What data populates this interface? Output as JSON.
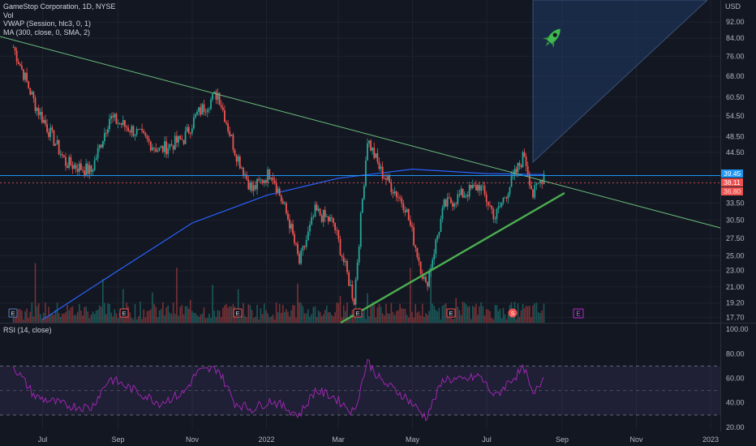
{
  "legend": {
    "line1": "GameStop Corporation, 1D, NYSE",
    "line2": "Vol",
    "line3": "VWAP (Session, hlc3, 0, 1)",
    "line4": "MA (300, close, 0, SMA, 2)"
  },
  "rsi_legend": "RSI (14, close)",
  "currency": "USD",
  "price_tags": {
    "current": "39.45",
    "level_a": "38.11",
    "level_b": "36.80"
  },
  "colors": {
    "background": "#131722",
    "up": "#26a69a",
    "down": "#ef5350",
    "ma": "#2962ff",
    "trend_line": "#6bbf7a",
    "support_line": "#4caf50",
    "rsi_line": "#9c27b0",
    "rsi_band": "#7e57c2",
    "current_price": "#2196f3",
    "projection_fill": "#1e3a66"
  },
  "earnings_markers": [
    "E",
    "E",
    "E",
    "E",
    "E",
    "E"
  ],
  "split_marker": "S",
  "future_earnings_marker": "E",
  "chart_data": [
    {
      "type": "candlestick",
      "title": "GameStop Corporation, 1D, NYSE",
      "x_tick_labels": [
        "Jul",
        "Sep",
        "Nov",
        "2022",
        "Mar",
        "May",
        "Jul",
        "Sep",
        "Nov",
        "2023"
      ],
      "y_tick_labels": [
        "92.00",
        "84.00",
        "76.00",
        "68.00",
        "60.50",
        "54.50",
        "48.50",
        "44.50",
        "39.45",
        "38.11",
        "36.80",
        "33.50",
        "30.50",
        "27.50",
        "25.00",
        "23.00",
        "21.00",
        "19.20",
        "17.70"
      ],
      "y_ticks": [
        92,
        84,
        76,
        68,
        60.5,
        54.5,
        48.5,
        44.5,
        33.5,
        30.5,
        27.5,
        25,
        23,
        21,
        19.2,
        17.7
      ],
      "ylim": [
        17.2,
        104
      ],
      "scale": "log",
      "key_points": [
        {
          "x": "2021-06-07",
          "close": 80
        },
        {
          "x": "2021-06-25",
          "close": 58
        },
        {
          "x": "2021-07-20",
          "close": 42
        },
        {
          "x": "2021-08-10",
          "close": 40
        },
        {
          "x": "2021-08-25",
          "close": 54
        },
        {
          "x": "2021-09-15",
          "close": 50
        },
        {
          "x": "2021-10-05",
          "close": 45
        },
        {
          "x": "2021-10-25",
          "close": 48
        },
        {
          "x": "2021-11-05",
          "close": 55
        },
        {
          "x": "2021-11-22",
          "close": 62
        },
        {
          "x": "2021-12-06",
          "close": 45
        },
        {
          "x": "2021-12-20",
          "close": 36
        },
        {
          "x": "2022-01-05",
          "close": 40
        },
        {
          "x": "2022-01-20",
          "close": 30
        },
        {
          "x": "2022-01-28",
          "close": 24
        },
        {
          "x": "2022-02-10",
          "close": 32
        },
        {
          "x": "2022-02-25",
          "close": 30
        },
        {
          "x": "2022-03-14",
          "close": 19.5
        },
        {
          "x": "2022-03-25",
          "close": 48
        },
        {
          "x": "2022-04-05",
          "close": 40
        },
        {
          "x": "2022-04-25",
          "close": 33
        },
        {
          "x": "2022-05-12",
          "close": 21
        },
        {
          "x": "2022-05-27",
          "close": 33
        },
        {
          "x": "2022-06-10",
          "close": 35
        },
        {
          "x": "2022-06-25",
          "close": 37
        },
        {
          "x": "2022-07-08",
          "close": 31
        },
        {
          "x": "2022-07-20",
          "close": 37
        },
        {
          "x": "2022-08-01",
          "close": 44
        },
        {
          "x": "2022-08-08",
          "close": 35
        },
        {
          "x": "2022-08-17",
          "close": 39.45
        }
      ],
      "ma300_points": [
        {
          "x": "2021-07-01",
          "y": 17.5
        },
        {
          "x": "2021-09-01",
          "y": 23
        },
        {
          "x": "2021-11-01",
          "y": 30
        },
        {
          "x": "2022-01-01",
          "y": 35
        },
        {
          "x": "2022-03-01",
          "y": 38.5
        },
        {
          "x": "2022-05-01",
          "y": 40.5
        },
        {
          "x": "2022-07-01",
          "y": 39.5
        },
        {
          "x": "2022-08-17",
          "y": 39.3
        }
      ],
      "current_price": 39.45
    },
    {
      "type": "line",
      "title": "RSI (14, close)",
      "y_tick_labels": [
        "100.00",
        "80.00",
        "60.00",
        "40.00",
        "20.00"
      ],
      "y_ticks": [
        100,
        80,
        60,
        40,
        20
      ],
      "ylim": [
        18,
        104
      ],
      "bands": [
        70,
        50,
        30
      ],
      "key_points": [
        {
          "x": "2021-06-07",
          "y": 70
        },
        {
          "x": "2021-06-25",
          "y": 45
        },
        {
          "x": "2021-07-20",
          "y": 38
        },
        {
          "x": "2021-08-10",
          "y": 36
        },
        {
          "x": "2021-08-25",
          "y": 60
        },
        {
          "x": "2021-09-15",
          "y": 50
        },
        {
          "x": "2021-10-05",
          "y": 40
        },
        {
          "x": "2021-10-25",
          "y": 48
        },
        {
          "x": "2021-11-05",
          "y": 65
        },
        {
          "x": "2021-11-22",
          "y": 68
        },
        {
          "x": "2021-12-06",
          "y": 40
        },
        {
          "x": "2021-12-20",
          "y": 35
        },
        {
          "x": "2022-01-05",
          "y": 42
        },
        {
          "x": "2022-01-28",
          "y": 30
        },
        {
          "x": "2022-02-10",
          "y": 50
        },
        {
          "x": "2022-02-25",
          "y": 45
        },
        {
          "x": "2022-03-14",
          "y": 32
        },
        {
          "x": "2022-03-25",
          "y": 74
        },
        {
          "x": "2022-04-05",
          "y": 58
        },
        {
          "x": "2022-04-25",
          "y": 45
        },
        {
          "x": "2022-05-12",
          "y": 28
        },
        {
          "x": "2022-05-27",
          "y": 60
        },
        {
          "x": "2022-06-10",
          "y": 58
        },
        {
          "x": "2022-06-25",
          "y": 62
        },
        {
          "x": "2022-07-08",
          "y": 45
        },
        {
          "x": "2022-07-20",
          "y": 58
        },
        {
          "x": "2022-08-01",
          "y": 68
        },
        {
          "x": "2022-08-08",
          "y": 45
        },
        {
          "x": "2022-08-17",
          "y": 61
        }
      ]
    }
  ]
}
